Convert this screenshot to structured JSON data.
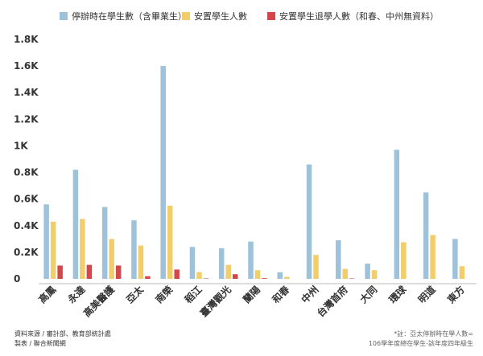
{
  "chart_data": {
    "type": "bar",
    "categories": [
      "高鳳",
      "永達",
      "高美醫護",
      "亞太",
      "南榮",
      "稻江",
      "臺灣觀光",
      "蘭陽",
      "和春",
      "中州",
      "台灣首府",
      "大同",
      "環球",
      "明道",
      "東方"
    ],
    "series": [
      {
        "name": "停辦時在學生數（含畢業生）",
        "color": "#9ec2d9",
        "values": [
          560,
          820,
          540,
          440,
          1600,
          240,
          230,
          280,
          50,
          860,
          290,
          115,
          970,
          650,
          300
        ]
      },
      {
        "name": "安置學生人數",
        "color": "#f2cd6b",
        "values": [
          430,
          450,
          300,
          250,
          550,
          50,
          105,
          65,
          15,
          180,
          75,
          65,
          275,
          330,
          95
        ]
      },
      {
        "name": "安置學生退學人數（和春、中州無資料）",
        "color": "#d2474a",
        "values": [
          100,
          105,
          100,
          20,
          70,
          3,
          35,
          5,
          0,
          0,
          3,
          0,
          0,
          0,
          0
        ]
      }
    ],
    "y_ticks": [
      "0",
      "0.2K",
      "0.4K",
      "0.6K",
      "0.8K",
      "1K",
      "1.2K",
      "1.4K",
      "1.6K",
      "1.8K"
    ],
    "ylim": [
      0,
      1800
    ],
    "grid": false,
    "legend_position": "top"
  },
  "footer": {
    "source_line1": "資料來源 / 審計部、教育部統計處",
    "source_line2": "製表 / 聯合新聞網",
    "note_line1": "*註：亞太停辦時在學人數=",
    "note_line2": "106學年度總在學生-該年度四年級生"
  }
}
